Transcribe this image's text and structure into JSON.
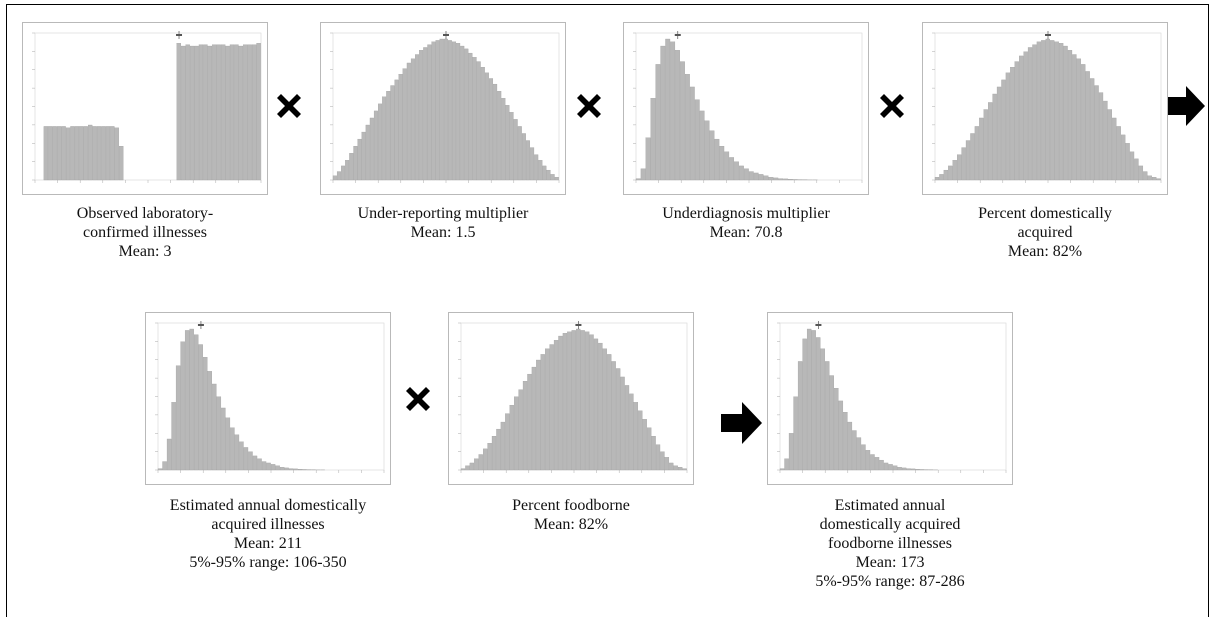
{
  "colors": {
    "bar": "#b8b8b8",
    "bar_edge": "#9a9a9a",
    "operator": "#000000",
    "panel_border": "#b9b9b9"
  },
  "operators": [
    "multiply-icon",
    "arrow-right-icon"
  ],
  "panels": [
    {
      "name": "observed",
      "chart_data": {
        "type": "bar",
        "shape": "step",
        "x": [
          0,
          1,
          2,
          3,
          4,
          5,
          6,
          7,
          8,
          9,
          10,
          11,
          12,
          13,
          14,
          15,
          16,
          17,
          18,
          19,
          20,
          21,
          22,
          23,
          24,
          25,
          26,
          27,
          28,
          29,
          30,
          31,
          32,
          33,
          34,
          35,
          36,
          37,
          38,
          39,
          40,
          41,
          42,
          43,
          44,
          45,
          46,
          47,
          48,
          49,
          50
        ],
        "values": [
          0,
          0,
          0.38,
          0.38,
          0.38,
          0.38,
          0.38,
          0.37,
          0.38,
          0.38,
          0.38,
          0.38,
          0.39,
          0.38,
          0.38,
          0.38,
          0.38,
          0.38,
          0.37,
          0.24,
          0,
          0,
          0,
          0,
          0,
          0,
          0,
          0,
          0,
          0,
          0,
          0,
          0.97,
          0.95,
          0.96,
          0.95,
          0.95,
          0.96,
          0.96,
          0.95,
          0.96,
          0.96,
          0.96,
          0.95,
          0.96,
          0.96,
          0.95,
          0.96,
          0.96,
          0.96,
          0.97
        ],
        "mean_marker": 32
      },
      "caption": [
        "Observed laboratory-",
        "confirmed illnesses",
        "Mean: 3"
      ]
    },
    {
      "name": "under-reporting",
      "chart_data": {
        "type": "bar",
        "shape": "symmetric",
        "x": [
          0,
          1,
          2,
          3,
          4,
          5,
          6,
          7,
          8,
          9,
          10,
          11,
          12,
          13,
          14,
          15,
          16,
          17,
          18,
          19,
          20,
          21,
          22,
          23,
          24,
          25,
          26,
          27,
          28,
          29,
          30,
          31,
          32,
          33,
          34,
          35,
          36,
          37,
          38,
          39,
          40,
          41,
          42,
          43,
          44,
          45,
          46,
          47,
          48,
          49,
          50,
          51,
          52,
          53,
          54
        ],
        "values": [
          0.03,
          0.06,
          0.1,
          0.14,
          0.19,
          0.24,
          0.29,
          0.34,
          0.39,
          0.44,
          0.49,
          0.54,
          0.59,
          0.63,
          0.67,
          0.71,
          0.75,
          0.79,
          0.83,
          0.86,
          0.89,
          0.92,
          0.94,
          0.96,
          0.98,
          0.99,
          1.0,
          1.0,
          0.99,
          0.98,
          0.97,
          0.95,
          0.93,
          0.9,
          0.87,
          0.84,
          0.8,
          0.76,
          0.72,
          0.68,
          0.63,
          0.58,
          0.53,
          0.48,
          0.43,
          0.38,
          0.33,
          0.28,
          0.23,
          0.18,
          0.14,
          0.1,
          0.07,
          0.04,
          0.02
        ],
        "mean_marker": 27
      },
      "caption": [
        "Under-reporting multiplier",
        "Mean: 1.5"
      ]
    },
    {
      "name": "underdiagnosis",
      "chart_data": {
        "type": "bar",
        "shape": "right-skewed",
        "x": [
          0,
          1,
          2,
          3,
          4,
          5,
          6,
          7,
          8,
          9,
          10,
          11,
          12,
          13,
          14,
          15,
          16,
          17,
          18,
          19,
          20,
          21,
          22,
          23,
          24,
          25,
          26,
          27,
          28,
          29,
          30,
          31,
          32,
          33,
          34,
          35,
          36,
          37,
          38,
          39,
          40,
          41,
          42,
          43,
          44,
          45
        ],
        "values": [
          0.01,
          0.08,
          0.3,
          0.58,
          0.82,
          0.95,
          1.0,
          0.98,
          0.92,
          0.84,
          0.75,
          0.66,
          0.57,
          0.49,
          0.42,
          0.35,
          0.29,
          0.24,
          0.2,
          0.16,
          0.13,
          0.1,
          0.08,
          0.06,
          0.05,
          0.04,
          0.03,
          0.02,
          0.015,
          0.01,
          0.008,
          0.006,
          0.004,
          0.003,
          0.002,
          0.001,
          0.001,
          0,
          0,
          0,
          0,
          0,
          0,
          0,
          0,
          0
        ],
        "mean_marker": 8
      },
      "caption": [
        "Underdiagnosis multiplier",
        "Mean: 70.8"
      ]
    },
    {
      "name": "percent-domestic",
      "chart_data": {
        "type": "bar",
        "shape": "symmetric",
        "x": [
          0,
          1,
          2,
          3,
          4,
          5,
          6,
          7,
          8,
          9,
          10,
          11,
          12,
          13,
          14,
          15,
          16,
          17,
          18,
          19,
          20,
          21,
          22,
          23,
          24,
          25,
          26,
          27,
          28,
          29,
          30,
          31,
          32,
          33,
          34,
          35,
          36,
          37,
          38,
          39,
          40,
          41,
          42,
          43,
          44,
          45,
          46,
          47,
          48,
          49,
          50
        ],
        "values": [
          0.02,
          0.04,
          0.07,
          0.1,
          0.14,
          0.18,
          0.23,
          0.28,
          0.33,
          0.38,
          0.44,
          0.5,
          0.55,
          0.61,
          0.66,
          0.71,
          0.76,
          0.8,
          0.84,
          0.88,
          0.91,
          0.94,
          0.96,
          0.98,
          0.99,
          1.0,
          0.99,
          0.98,
          0.97,
          0.95,
          0.92,
          0.89,
          0.86,
          0.82,
          0.77,
          0.72,
          0.67,
          0.62,
          0.56,
          0.5,
          0.44,
          0.38,
          0.32,
          0.26,
          0.2,
          0.15,
          0.1,
          0.06,
          0.03,
          0.02,
          0.01
        ],
        "mean_marker": 25
      },
      "caption": [
        "Percent domestically",
        "acquired",
        "Mean: 82%"
      ]
    },
    {
      "name": "estimated-domestic",
      "chart_data": {
        "type": "bar",
        "shape": "right-skewed",
        "x": [
          0,
          1,
          2,
          3,
          4,
          5,
          6,
          7,
          8,
          9,
          10,
          11,
          12,
          13,
          14,
          15,
          16,
          17,
          18,
          19,
          20,
          21,
          22,
          23,
          24,
          25,
          26,
          27,
          28,
          29,
          30,
          31,
          32,
          33,
          34,
          35,
          36,
          37,
          38,
          39,
          40,
          41,
          42,
          43,
          44,
          45,
          46,
          47,
          48,
          49
        ],
        "values": [
          0.01,
          0.06,
          0.22,
          0.48,
          0.74,
          0.91,
          0.99,
          1.0,
          0.96,
          0.89,
          0.8,
          0.7,
          0.61,
          0.52,
          0.44,
          0.37,
          0.3,
          0.25,
          0.2,
          0.16,
          0.13,
          0.1,
          0.08,
          0.06,
          0.05,
          0.04,
          0.03,
          0.02,
          0.015,
          0.01,
          0.008,
          0.006,
          0.004,
          0.003,
          0.002,
          0.001,
          0.001,
          0,
          0,
          0,
          0,
          0,
          0,
          0,
          0,
          0,
          0,
          0,
          0,
          0
        ],
        "mean_marker": 9
      },
      "caption": [
        "Estimated annual domestically",
        "acquired illnesses",
        "Mean: 211",
        "5%-95% range: 106-350"
      ]
    },
    {
      "name": "percent-foodborne",
      "chart_data": {
        "type": "bar",
        "shape": "symmetric",
        "x": [
          0,
          1,
          2,
          3,
          4,
          5,
          6,
          7,
          8,
          9,
          10,
          11,
          12,
          13,
          14,
          15,
          16,
          17,
          18,
          19,
          20,
          21,
          22,
          23,
          24,
          25,
          26,
          27,
          28,
          29,
          30,
          31,
          32,
          33,
          34,
          35,
          36,
          37,
          38,
          39,
          40,
          41,
          42,
          43,
          44,
          45,
          46,
          47,
          48,
          49,
          50
        ],
        "values": [
          0.01,
          0.03,
          0.05,
          0.08,
          0.11,
          0.15,
          0.19,
          0.24,
          0.29,
          0.34,
          0.4,
          0.46,
          0.52,
          0.57,
          0.63,
          0.68,
          0.73,
          0.78,
          0.82,
          0.86,
          0.89,
          0.92,
          0.95,
          0.97,
          0.98,
          0.99,
          1.0,
          0.99,
          0.98,
          0.96,
          0.93,
          0.9,
          0.86,
          0.82,
          0.77,
          0.72,
          0.66,
          0.6,
          0.54,
          0.48,
          0.42,
          0.36,
          0.3,
          0.24,
          0.18,
          0.13,
          0.09,
          0.05,
          0.03,
          0.02,
          0.01
        ],
        "mean_marker": 26
      },
      "caption": [
        "Percent foodborne",
        "Mean: 82%"
      ]
    },
    {
      "name": "estimated-foodborne",
      "chart_data": {
        "type": "bar",
        "shape": "right-skewed",
        "x": [
          0,
          1,
          2,
          3,
          4,
          5,
          6,
          7,
          8,
          9,
          10,
          11,
          12,
          13,
          14,
          15,
          16,
          17,
          18,
          19,
          20,
          21,
          22,
          23,
          24,
          25,
          26,
          27,
          28,
          29,
          30,
          31,
          32,
          33,
          34,
          35,
          36,
          37,
          38,
          39,
          40,
          41,
          42,
          43,
          44,
          45,
          46,
          47,
          48,
          49
        ],
        "values": [
          0.01,
          0.08,
          0.26,
          0.52,
          0.77,
          0.93,
          1.0,
          0.99,
          0.94,
          0.86,
          0.77,
          0.67,
          0.58,
          0.49,
          0.41,
          0.34,
          0.28,
          0.23,
          0.18,
          0.14,
          0.11,
          0.09,
          0.07,
          0.05,
          0.04,
          0.03,
          0.02,
          0.015,
          0.01,
          0.008,
          0.006,
          0.004,
          0.003,
          0.002,
          0.001,
          0,
          0,
          0,
          0,
          0,
          0,
          0,
          0,
          0,
          0,
          0,
          0,
          0,
          0,
          0
        ],
        "mean_marker": 8
      },
      "caption": [
        "Estimated annual",
        "domestically acquired",
        "foodborne illnesses",
        "Mean: 173",
        "5%-95% range: 87-286"
      ]
    }
  ]
}
